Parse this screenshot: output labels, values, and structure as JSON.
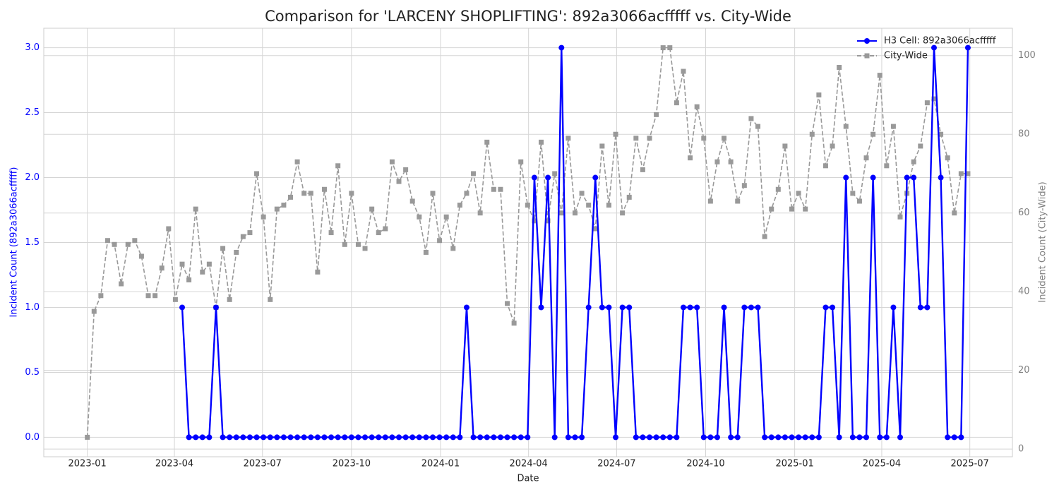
{
  "chart_data": {
    "type": "line",
    "title": "Comparison for 'LARCENY SHOPLIFTING': 892a3066acfffff vs. City-Wide",
    "x_label": "Date",
    "y_label": "Incident Count (892a3066acfffff)",
    "y2_label": "Incident Count (City-Wide)",
    "grid": true,
    "legend": "upper right",
    "x": [
      "2023-01-01",
      "2023-01-08",
      "2023-01-15",
      "2023-01-22",
      "2023-01-29",
      "2023-02-05",
      "2023-02-12",
      "2023-02-19",
      "2023-02-26",
      "2023-03-05",
      "2023-03-12",
      "2023-03-19",
      "2023-03-26",
      "2023-04-02",
      "2023-04-09",
      "2023-04-16",
      "2023-04-23",
      "2023-04-30",
      "2023-05-07",
      "2023-05-14",
      "2023-05-21",
      "2023-05-28",
      "2023-06-04",
      "2023-06-11",
      "2023-06-18",
      "2023-06-25",
      "2023-07-02",
      "2023-07-09",
      "2023-07-16",
      "2023-07-23",
      "2023-07-30",
      "2023-08-06",
      "2023-08-13",
      "2023-08-20",
      "2023-08-27",
      "2023-09-03",
      "2023-09-10",
      "2023-09-17",
      "2023-09-24",
      "2023-10-01",
      "2023-10-08",
      "2023-10-15",
      "2023-10-22",
      "2023-10-29",
      "2023-11-05",
      "2023-11-12",
      "2023-11-19",
      "2023-11-26",
      "2023-12-03",
      "2023-12-10",
      "2023-12-17",
      "2023-12-24",
      "2023-12-31",
      "2024-01-07",
      "2024-01-14",
      "2024-01-21",
      "2024-01-28",
      "2024-02-04",
      "2024-02-11",
      "2024-02-18",
      "2024-02-25",
      "2024-03-03",
      "2024-03-10",
      "2024-03-17",
      "2024-03-24",
      "2024-03-31",
      "2024-04-07",
      "2024-04-14",
      "2024-04-21",
      "2024-04-28",
      "2024-05-05",
      "2024-05-12",
      "2024-05-19",
      "2024-05-26",
      "2024-06-02",
      "2024-06-09",
      "2024-06-16",
      "2024-06-23",
      "2024-06-30",
      "2024-07-07",
      "2024-07-14",
      "2024-07-21",
      "2024-07-28",
      "2024-08-04",
      "2024-08-11",
      "2024-08-18",
      "2024-08-25",
      "2024-09-01",
      "2024-09-08",
      "2024-09-15",
      "2024-09-22",
      "2024-09-29",
      "2024-10-06",
      "2024-10-13",
      "2024-10-20",
      "2024-10-27",
      "2024-11-03",
      "2024-11-10",
      "2024-11-17",
      "2024-11-24",
      "2024-12-01",
      "2024-12-08",
      "2024-12-15",
      "2024-12-22",
      "2024-12-29",
      "2025-01-05",
      "2025-01-12",
      "2025-01-19",
      "2025-01-26",
      "2025-02-02",
      "2025-02-09",
      "2025-02-16",
      "2025-02-23",
      "2025-03-02",
      "2025-03-09",
      "2025-03-16",
      "2025-03-23",
      "2025-03-30",
      "2025-04-06",
      "2025-04-13",
      "2025-04-20",
      "2025-04-27",
      "2025-05-04",
      "2025-05-11",
      "2025-05-18",
      "2025-05-25",
      "2025-06-01",
      "2025-06-08",
      "2025-06-15",
      "2025-06-22",
      "2025-06-29"
    ],
    "xlim": [
      "2022-11-17",
      "2025-08-14"
    ],
    "xticks": [
      {
        "value": "2023-01-01",
        "label": "2023-01"
      },
      {
        "value": "2023-04-01",
        "label": "2023-04"
      },
      {
        "value": "2023-07-01",
        "label": "2023-07"
      },
      {
        "value": "2023-10-01",
        "label": "2023-10"
      },
      {
        "value": "2024-01-01",
        "label": "2024-01"
      },
      {
        "value": "2024-04-01",
        "label": "2024-04"
      },
      {
        "value": "2024-07-01",
        "label": "2024-07"
      },
      {
        "value": "2024-10-01",
        "label": "2024-10"
      },
      {
        "value": "2025-01-01",
        "label": "2025-01"
      },
      {
        "value": "2025-04-01",
        "label": "2025-04"
      },
      {
        "value": "2025-07-01",
        "label": "2025-07"
      }
    ],
    "ylim": [
      -0.15,
      3.15
    ],
    "yticks": [
      {
        "value": 0,
        "label": "0.0"
      },
      {
        "value": 0.5,
        "label": "0.5"
      },
      {
        "value": 1,
        "label": "1.0"
      },
      {
        "value": 1.5,
        "label": "1.5"
      },
      {
        "value": 2,
        "label": "2.0"
      },
      {
        "value": 2.5,
        "label": "2.5"
      },
      {
        "value": 3,
        "label": "3.0"
      }
    ],
    "y_color": "#0000ff",
    "y2lim": [
      -1.95,
      106.95
    ],
    "y2ticks": [
      0,
      20,
      40,
      60,
      80,
      100
    ],
    "y2_color": "#808080",
    "series": [
      {
        "name": "City-Wide",
        "color": "#999999",
        "axis": "y2",
        "linestyle": "dashed",
        "marker": "square",
        "values": [
          3,
          35,
          39,
          53,
          52,
          42,
          52,
          53,
          49,
          39,
          39,
          46,
          56,
          38,
          47,
          43,
          61,
          45,
          47,
          36,
          51,
          38,
          50,
          54,
          55,
          70,
          59,
          38,
          61,
          62,
          64,
          73,
          65,
          65,
          45,
          66,
          55,
          72,
          52,
          65,
          52,
          51,
          61,
          55,
          56,
          73,
          68,
          71,
          63,
          59,
          50,
          65,
          53,
          59,
          51,
          62,
          65,
          70,
          60,
          78,
          66,
          66,
          37,
          32,
          73,
          62,
          58,
          78,
          58,
          70,
          60,
          79,
          60,
          65,
          62,
          56,
          77,
          62,
          80,
          60,
          64,
          79,
          71,
          79,
          85,
          102,
          102,
          88,
          96,
          74,
          87,
          79,
          63,
          73,
          79,
          73,
          63,
          67,
          84,
          82,
          54,
          61,
          66,
          77,
          61,
          65,
          61,
          80,
          90,
          72,
          77,
          97,
          82,
          65,
          63,
          74,
          80,
          95,
          72,
          82,
          59,
          65,
          73,
          77,
          88,
          89,
          80,
          74,
          60,
          70,
          70
        ]
      },
      {
        "name": "H3 Cell: 892a3066acfffff",
        "color": "#0000ff",
        "axis": "y",
        "linestyle": "solid",
        "marker": "circle",
        "values": [
          null,
          null,
          null,
          null,
          null,
          null,
          null,
          null,
          null,
          null,
          null,
          null,
          null,
          null,
          1,
          0,
          0,
          0,
          0,
          1,
          0,
          0,
          0,
          0,
          0,
          0,
          0,
          0,
          0,
          0,
          0,
          0,
          0,
          0,
          0,
          0,
          0,
          0,
          0,
          0,
          0,
          0,
          0,
          0,
          0,
          0,
          0,
          0,
          0,
          0,
          0,
          0,
          0,
          0,
          0,
          0,
          1,
          0,
          0,
          0,
          0,
          0,
          0,
          0,
          0,
          0,
          2,
          1,
          2,
          0,
          3,
          0,
          0,
          0,
          1,
          2,
          1,
          1,
          0,
          1,
          1,
          0,
          0,
          0,
          0,
          0,
          0,
          0,
          1,
          1,
          1,
          0,
          0,
          0,
          1,
          0,
          0,
          1,
          1,
          1,
          0,
          0,
          0,
          0,
          0,
          0,
          0,
          0,
          0,
          1,
          1,
          0,
          2,
          0,
          0,
          0,
          2,
          0,
          0,
          1,
          0,
          2,
          2,
          1,
          1,
          3,
          2,
          0,
          0,
          0,
          3
        ]
      }
    ]
  }
}
